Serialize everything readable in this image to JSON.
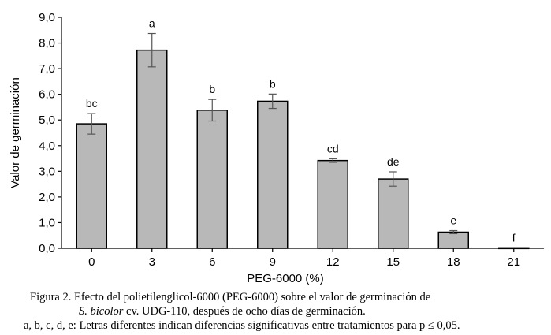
{
  "chart_data": {
    "type": "bar",
    "categories": [
      "0",
      "3",
      "6",
      "9",
      "12",
      "15",
      "18",
      "21"
    ],
    "values": [
      4.85,
      7.72,
      5.38,
      5.73,
      3.42,
      2.7,
      0.63,
      0.02
    ],
    "errors": [
      0.4,
      0.65,
      0.42,
      0.28,
      0.07,
      0.28,
      0.06,
      0.0
    ],
    "letters": [
      "bc",
      "a",
      "b",
      "b",
      "cd",
      "de",
      "e",
      "f"
    ],
    "xlabel": "PEG-6000 (%)",
    "ylabel": "Valor de germinación",
    "ylim": [
      0,
      9
    ],
    "yticks": [
      "0,0",
      "1,0",
      "2,0",
      "3,0",
      "4,0",
      "5,0",
      "6,0",
      "7,0",
      "8,0",
      "9,0"
    ],
    "bar_color": "#b8b8b8",
    "grid": false
  },
  "caption": {
    "line1": "Figura 2. Efecto del polietilenglicol-6000 (PEG-6000) sobre el valor de germinación de",
    "line2_italic": "S. bicolor",
    "line2_rest": " cv. UDG-110, después de ocho días de germinación.",
    "line3": "a, b, c, d, e: Letras diferentes indican diferencias significativas entre tratamientos para p ≤ 0,05."
  }
}
